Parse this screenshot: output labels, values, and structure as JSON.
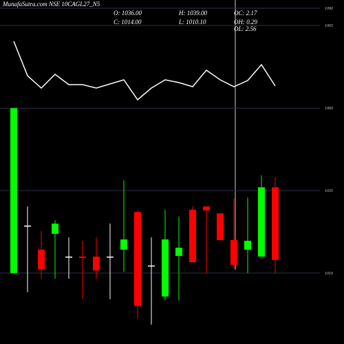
{
  "chart_data": [
    {
      "type": "candlestick",
      "title": "MunafaSutra.com NSE 10CAGL27_N5",
      "info": [
        "O: 1036.00",
        "H: 1039.00",
        "OC: 2.17",
        "C: 1014.00",
        "L: 1010.10",
        "OH: 0.29",
        "OL: 2.56"
      ],
      "series": {
        "open": [
          1010,
          1024.4,
          1017.1,
          1021.9,
          1015,
          1015,
          1015,
          1015,
          1017.1,
          1028.5,
          1012.3,
          1002.9,
          1015.2,
          1029.2,
          1030.2,
          1028.1,
          1020,
          1017.1,
          1015,
          1036
        ],
        "high": [
          1060,
          1030.2,
          1022.7,
          1026,
          1020.8,
          1019.8,
          1020.8,
          1025,
          1038.1,
          1029.2,
          1020.8,
          1029.2,
          1027.1,
          1030.2,
          1030.2,
          1028.1,
          1032.7,
          1032.9,
          1039.6,
          1039
        ],
        "low": [
          1010,
          1004.2,
          1008.3,
          1008.3,
          1008.3,
          1002.1,
          1008.3,
          1002.1,
          1010.4,
          996.25,
          994.4,
          1001.7,
          1001.7,
          1013.3,
          1010,
          1020,
          1011.25,
          1010,
          1015,
          1010.1
        ],
        "close": [
          1060,
          1024.4,
          1011.25,
          1025,
          1015,
          1014.6,
          1010.8,
          1015,
          1020.2,
          1000,
          1012.3,
          1020.2,
          1017.7,
          1013.3,
          1029,
          1020,
          1012.5,
          1019.8,
          1036,
          1014
        ]
      },
      "up_color": "#00ff00",
      "down_color": "#ff0000",
      "flat_color": "#ffffff",
      "ylim": [
        988.5,
        1061.5
      ],
      "yticks": [
        1010,
        1035,
        1060
      ],
      "grid": true
    },
    {
      "type": "line",
      "color": "#ffffff",
      "values": [
        1042,
        992,
        974,
        994,
        979,
        979,
        974,
        980,
        986,
        957,
        974,
        986,
        982,
        976,
        1000,
        986,
        976,
        985,
        1008,
        977
      ],
      "ylim": [
        952,
        1102
      ],
      "yticks": [
        1065,
        1090
      ],
      "grid": true
    }
  ]
}
